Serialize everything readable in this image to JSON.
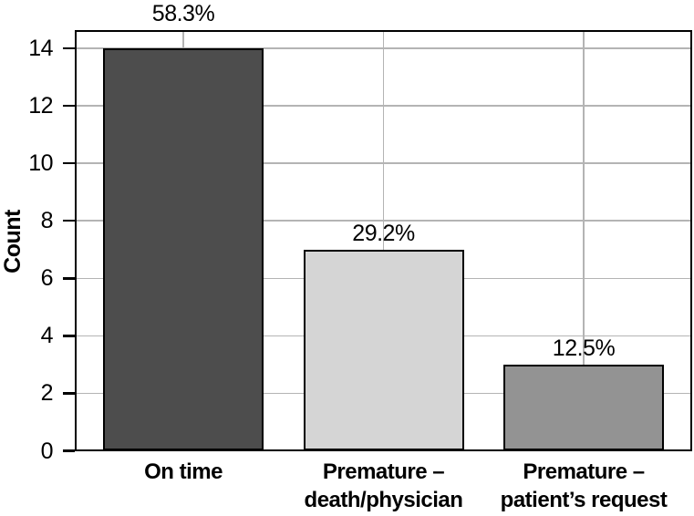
{
  "chart_data": {
    "type": "bar",
    "title": "",
    "xlabel": "",
    "ylabel": "Count",
    "categories": [
      [
        "On time"
      ],
      [
        "Premature –",
        "death/physician"
      ],
      [
        "Premature –",
        "patient’s request"
      ]
    ],
    "values": [
      14,
      7,
      3
    ],
    "bar_value_labels": [
      "58.3%",
      "29.2%",
      "12.5%"
    ],
    "bar_colors": [
      "#4d4d4d",
      "#d5d5d5",
      "#939393"
    ],
    "yticks": [
      0,
      2,
      4,
      6,
      8,
      10,
      12,
      14
    ],
    "ylim": [
      0,
      14.6
    ],
    "grid": true,
    "gridline_color": "#b4b4b4",
    "axis_color": "#000000",
    "background_color": "#ffffff",
    "legend_position": "none"
  }
}
